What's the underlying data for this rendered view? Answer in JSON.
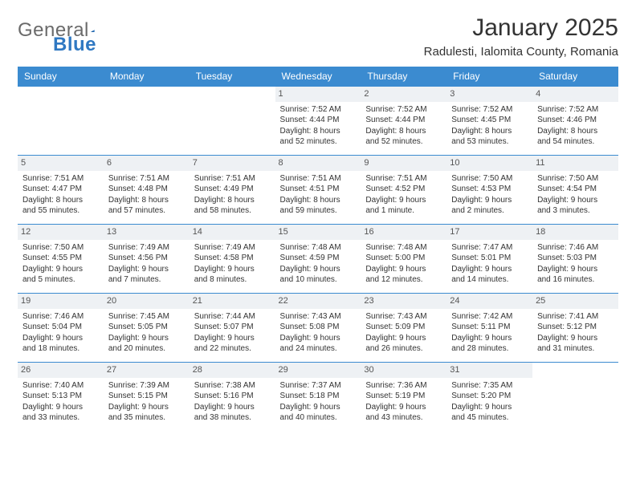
{
  "brand": {
    "word1": "General",
    "word2": "Blue",
    "logo_color": "#2f78c2",
    "text_color": "#6a6a6a"
  },
  "header": {
    "title": "January 2025",
    "location": "Radulesti, Ialomita County, Romania",
    "title_fontsize": 30,
    "subtitle_fontsize": 15
  },
  "calendar": {
    "type": "table",
    "header_bg": "#3b8bd0",
    "header_text_color": "#ffffff",
    "row_border_color": "#3b8bd0",
    "daynum_bg": "#eef1f4",
    "body_fontsize": 10,
    "columns": [
      "Sunday",
      "Monday",
      "Tuesday",
      "Wednesday",
      "Thursday",
      "Friday",
      "Saturday"
    ],
    "weeks": [
      [
        null,
        null,
        null,
        {
          "n": "1",
          "sr": "Sunrise: 7:52 AM",
          "ss": "Sunset: 4:44 PM",
          "d1": "Daylight: 8 hours",
          "d2": "and 52 minutes."
        },
        {
          "n": "2",
          "sr": "Sunrise: 7:52 AM",
          "ss": "Sunset: 4:44 PM",
          "d1": "Daylight: 8 hours",
          "d2": "and 52 minutes."
        },
        {
          "n": "3",
          "sr": "Sunrise: 7:52 AM",
          "ss": "Sunset: 4:45 PM",
          "d1": "Daylight: 8 hours",
          "d2": "and 53 minutes."
        },
        {
          "n": "4",
          "sr": "Sunrise: 7:52 AM",
          "ss": "Sunset: 4:46 PM",
          "d1": "Daylight: 8 hours",
          "d2": "and 54 minutes."
        }
      ],
      [
        {
          "n": "5",
          "sr": "Sunrise: 7:51 AM",
          "ss": "Sunset: 4:47 PM",
          "d1": "Daylight: 8 hours",
          "d2": "and 55 minutes."
        },
        {
          "n": "6",
          "sr": "Sunrise: 7:51 AM",
          "ss": "Sunset: 4:48 PM",
          "d1": "Daylight: 8 hours",
          "d2": "and 57 minutes."
        },
        {
          "n": "7",
          "sr": "Sunrise: 7:51 AM",
          "ss": "Sunset: 4:49 PM",
          "d1": "Daylight: 8 hours",
          "d2": "and 58 minutes."
        },
        {
          "n": "8",
          "sr": "Sunrise: 7:51 AM",
          "ss": "Sunset: 4:51 PM",
          "d1": "Daylight: 8 hours",
          "d2": "and 59 minutes."
        },
        {
          "n": "9",
          "sr": "Sunrise: 7:51 AM",
          "ss": "Sunset: 4:52 PM",
          "d1": "Daylight: 9 hours",
          "d2": "and 1 minute."
        },
        {
          "n": "10",
          "sr": "Sunrise: 7:50 AM",
          "ss": "Sunset: 4:53 PM",
          "d1": "Daylight: 9 hours",
          "d2": "and 2 minutes."
        },
        {
          "n": "11",
          "sr": "Sunrise: 7:50 AM",
          "ss": "Sunset: 4:54 PM",
          "d1": "Daylight: 9 hours",
          "d2": "and 3 minutes."
        }
      ],
      [
        {
          "n": "12",
          "sr": "Sunrise: 7:50 AM",
          "ss": "Sunset: 4:55 PM",
          "d1": "Daylight: 9 hours",
          "d2": "and 5 minutes."
        },
        {
          "n": "13",
          "sr": "Sunrise: 7:49 AM",
          "ss": "Sunset: 4:56 PM",
          "d1": "Daylight: 9 hours",
          "d2": "and 7 minutes."
        },
        {
          "n": "14",
          "sr": "Sunrise: 7:49 AM",
          "ss": "Sunset: 4:58 PM",
          "d1": "Daylight: 9 hours",
          "d2": "and 8 minutes."
        },
        {
          "n": "15",
          "sr": "Sunrise: 7:48 AM",
          "ss": "Sunset: 4:59 PM",
          "d1": "Daylight: 9 hours",
          "d2": "and 10 minutes."
        },
        {
          "n": "16",
          "sr": "Sunrise: 7:48 AM",
          "ss": "Sunset: 5:00 PM",
          "d1": "Daylight: 9 hours",
          "d2": "and 12 minutes."
        },
        {
          "n": "17",
          "sr": "Sunrise: 7:47 AM",
          "ss": "Sunset: 5:01 PM",
          "d1": "Daylight: 9 hours",
          "d2": "and 14 minutes."
        },
        {
          "n": "18",
          "sr": "Sunrise: 7:46 AM",
          "ss": "Sunset: 5:03 PM",
          "d1": "Daylight: 9 hours",
          "d2": "and 16 minutes."
        }
      ],
      [
        {
          "n": "19",
          "sr": "Sunrise: 7:46 AM",
          "ss": "Sunset: 5:04 PM",
          "d1": "Daylight: 9 hours",
          "d2": "and 18 minutes."
        },
        {
          "n": "20",
          "sr": "Sunrise: 7:45 AM",
          "ss": "Sunset: 5:05 PM",
          "d1": "Daylight: 9 hours",
          "d2": "and 20 minutes."
        },
        {
          "n": "21",
          "sr": "Sunrise: 7:44 AM",
          "ss": "Sunset: 5:07 PM",
          "d1": "Daylight: 9 hours",
          "d2": "and 22 minutes."
        },
        {
          "n": "22",
          "sr": "Sunrise: 7:43 AM",
          "ss": "Sunset: 5:08 PM",
          "d1": "Daylight: 9 hours",
          "d2": "and 24 minutes."
        },
        {
          "n": "23",
          "sr": "Sunrise: 7:43 AM",
          "ss": "Sunset: 5:09 PM",
          "d1": "Daylight: 9 hours",
          "d2": "and 26 minutes."
        },
        {
          "n": "24",
          "sr": "Sunrise: 7:42 AM",
          "ss": "Sunset: 5:11 PM",
          "d1": "Daylight: 9 hours",
          "d2": "and 28 minutes."
        },
        {
          "n": "25",
          "sr": "Sunrise: 7:41 AM",
          "ss": "Sunset: 5:12 PM",
          "d1": "Daylight: 9 hours",
          "d2": "and 31 minutes."
        }
      ],
      [
        {
          "n": "26",
          "sr": "Sunrise: 7:40 AM",
          "ss": "Sunset: 5:13 PM",
          "d1": "Daylight: 9 hours",
          "d2": "and 33 minutes."
        },
        {
          "n": "27",
          "sr": "Sunrise: 7:39 AM",
          "ss": "Sunset: 5:15 PM",
          "d1": "Daylight: 9 hours",
          "d2": "and 35 minutes."
        },
        {
          "n": "28",
          "sr": "Sunrise: 7:38 AM",
          "ss": "Sunset: 5:16 PM",
          "d1": "Daylight: 9 hours",
          "d2": "and 38 minutes."
        },
        {
          "n": "29",
          "sr": "Sunrise: 7:37 AM",
          "ss": "Sunset: 5:18 PM",
          "d1": "Daylight: 9 hours",
          "d2": "and 40 minutes."
        },
        {
          "n": "30",
          "sr": "Sunrise: 7:36 AM",
          "ss": "Sunset: 5:19 PM",
          "d1": "Daylight: 9 hours",
          "d2": "and 43 minutes."
        },
        {
          "n": "31",
          "sr": "Sunrise: 7:35 AM",
          "ss": "Sunset: 5:20 PM",
          "d1": "Daylight: 9 hours",
          "d2": "and 45 minutes."
        },
        null
      ]
    ]
  }
}
